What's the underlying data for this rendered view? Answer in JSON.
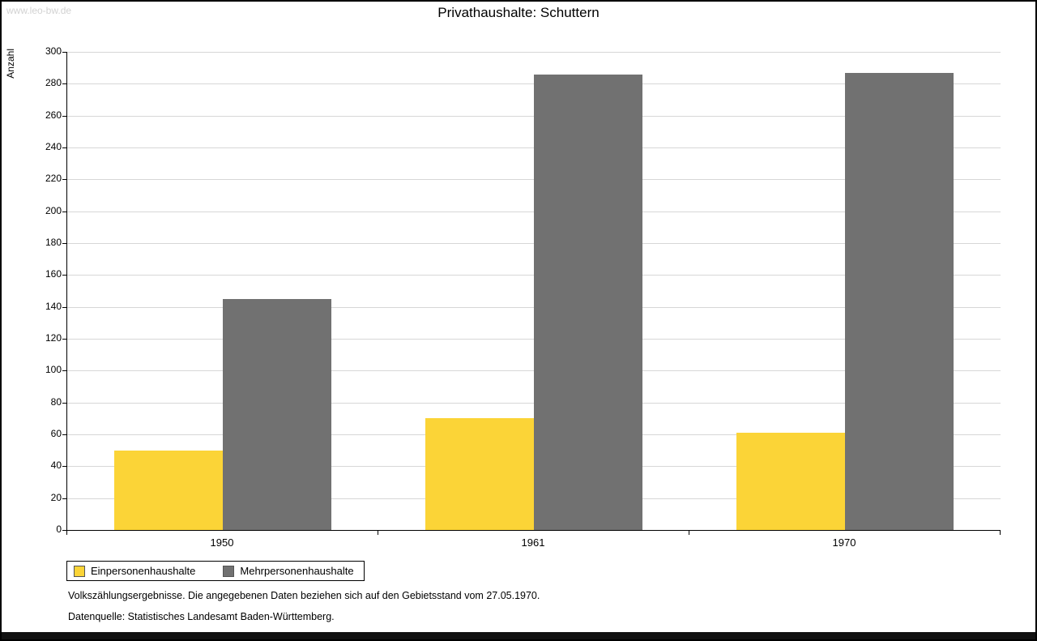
{
  "watermark": "www.leo-bw.de",
  "title": "Privathaushalte: Schuttern",
  "footnotes": {
    "line1": "Volkszählungsergebnisse. Die angegebenen Daten beziehen sich auf den Gebietsstand vom 27.05.1970.",
    "line2": "Datenquelle: Statistisches Landesamt Baden-Württemberg."
  },
  "chart_data": {
    "type": "bar",
    "title": "Privathaushalte: Schuttern",
    "categories": [
      "1950",
      "1961",
      "1970"
    ],
    "series": [
      {
        "name": "Einpersonenhaushalte",
        "color": "#fbd437",
        "values": [
          50,
          70,
          61
        ]
      },
      {
        "name": "Mehrpersonenhaushalte",
        "color": "#717171",
        "values": [
          145,
          286,
          287
        ]
      }
    ],
    "ylabel": "Anzahl",
    "ylim": [
      0,
      300
    ],
    "ytick_step": 20,
    "grid": true,
    "legend_position": "bottom-left"
  }
}
